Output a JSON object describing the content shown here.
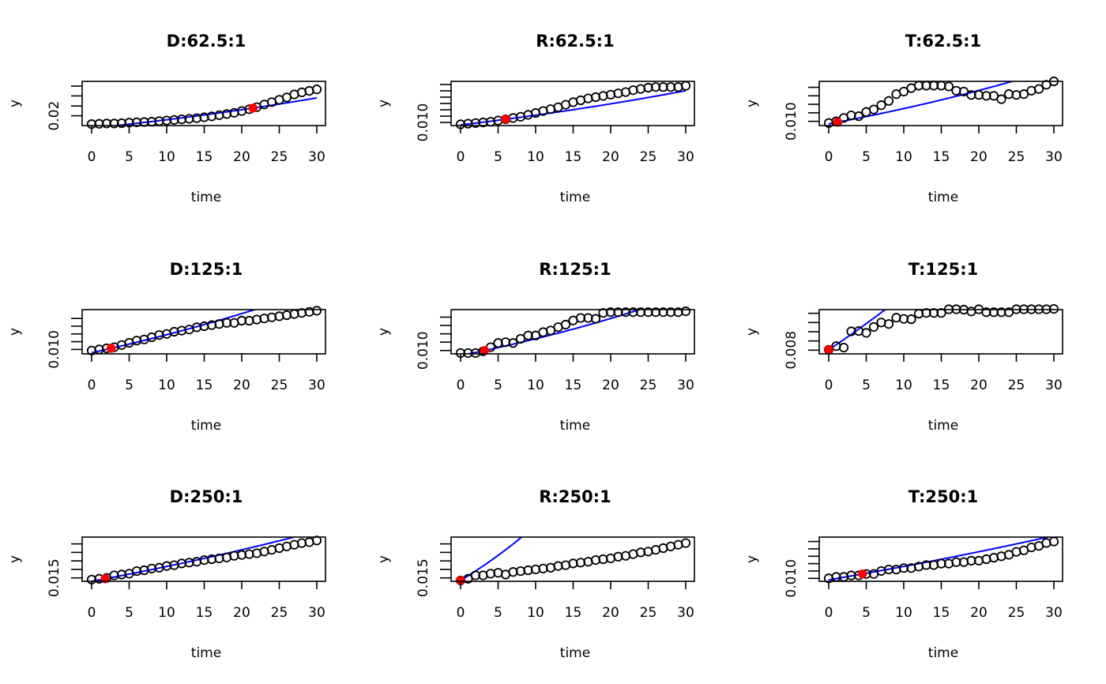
{
  "chart_data": [
    {
      "type": "scatter",
      "title": "D:62.5:1",
      "xlabel": "time",
      "ylabel": "y",
      "xlim": [
        0,
        30
      ],
      "xticks": [
        "0",
        "5",
        "10",
        "15",
        "20",
        "25",
        "30"
      ],
      "ylim": [
        0.0167,
        0.0316
      ],
      "yticks": [
        0.02,
        0.0233,
        0.0267,
        0.03
      ],
      "ytick_label": "0.02",
      "x": [
        0,
        1,
        2,
        3,
        4,
        5,
        6,
        7,
        8,
        9,
        10,
        11,
        12,
        13,
        14,
        15,
        16,
        17,
        18,
        19,
        20,
        21,
        22,
        23,
        24,
        25,
        26,
        27,
        28,
        29,
        30
      ],
      "y": [
        0.0172,
        0.0173,
        0.0174,
        0.0174,
        0.0175,
        0.0177,
        0.0178,
        0.0179,
        0.018,
        0.0182,
        0.0184,
        0.0186,
        0.0188,
        0.019,
        0.0192,
        0.0195,
        0.0198,
        0.0202,
        0.0206,
        0.021,
        0.0216,
        0.0222,
        0.0229,
        0.0238,
        0.0246,
        0.0254,
        0.0262,
        0.0272,
        0.0279,
        0.0284,
        0.0289
      ],
      "highlight_point": {
        "x": 21.5,
        "y": 0.0226
      },
      "fit": {
        "type": "exponential",
        "through": {
          "x": 21.5,
          "y": 0.0226
        },
        "y0": 0.0158,
        "color": "#0000ff"
      },
      "point_color": "#000000",
      "highlight_color": "#ff0000"
    },
    {
      "type": "scatter",
      "title": "R:62.5:1",
      "xlabel": "time",
      "ylabel": "y",
      "xlim": [
        0,
        30
      ],
      "xticks": [
        "0",
        "5",
        "10",
        "15",
        "20",
        "25",
        "30"
      ],
      "ylim": [
        0.0095,
        0.0165
      ],
      "yticks": [
        0.01,
        0.011,
        0.012,
        0.013,
        0.014,
        0.015,
        0.016
      ],
      "ytick_label": "0.010",
      "x": [
        0,
        1,
        2,
        3,
        4,
        5,
        6,
        7,
        8,
        9,
        10,
        11,
        12,
        13,
        14,
        15,
        16,
        17,
        18,
        19,
        20,
        21,
        22,
        23,
        24,
        25,
        26,
        27,
        28,
        29,
        30
      ],
      "y": [
        0.0097,
        0.0098,
        0.0099,
        0.01,
        0.0101,
        0.0103,
        0.0105,
        0.0107,
        0.0109,
        0.0112,
        0.0115,
        0.0118,
        0.0121,
        0.0124,
        0.0128,
        0.0132,
        0.0135,
        0.0138,
        0.014,
        0.0142,
        0.0144,
        0.0146,
        0.0148,
        0.0151,
        0.0153,
        0.0155,
        0.0156,
        0.0156,
        0.0156,
        0.0156,
        0.0158
      ],
      "highlight_point": {
        "x": 6,
        "y": 0.0105
      },
      "fit": {
        "type": "exponential",
        "through": {
          "x": 6,
          "y": 0.0105
        },
        "y0": 0.0096,
        "color": "#0000ff"
      },
      "point_color": "#000000",
      "highlight_color": "#ff0000"
    },
    {
      "type": "scatter",
      "title": "T:62.5:1",
      "xlabel": "time",
      "ylabel": "y",
      "xlim": [
        0,
        30
      ],
      "xticks": [
        "0",
        "5",
        "10",
        "15",
        "20",
        "25",
        "30"
      ],
      "ylim": [
        0.0095,
        0.0147
      ],
      "yticks": [
        0.01,
        0.011,
        0.012,
        0.013,
        0.014
      ],
      "ytick_label": "0.010",
      "x": [
        0,
        1,
        2,
        3,
        4,
        5,
        6,
        7,
        8,
        9,
        10,
        11,
        12,
        13,
        14,
        15,
        16,
        17,
        18,
        19,
        20,
        21,
        22,
        23,
        24,
        25,
        26,
        27,
        28,
        29,
        30
      ],
      "y": [
        0.0098,
        0.01,
        0.0104,
        0.0107,
        0.0106,
        0.0111,
        0.0114,
        0.0119,
        0.0124,
        0.0132,
        0.0135,
        0.0139,
        0.0142,
        0.0142,
        0.0142,
        0.0142,
        0.0141,
        0.0136,
        0.0135,
        0.0131,
        0.0131,
        0.013,
        0.013,
        0.0126,
        0.0132,
        0.0131,
        0.0132,
        0.0136,
        0.0138,
        0.0143,
        0.0147
      ],
      "highlight_point": {
        "x": 1.2,
        "y": 0.0099
      },
      "fit": {
        "type": "exponential",
        "through": {
          "x": 1.2,
          "y": 0.0099
        },
        "y0": 0.0097,
        "color": "#0000ff"
      },
      "point_color": "#000000",
      "highlight_color": "#ff0000"
    },
    {
      "type": "scatter",
      "title": "D:125:1",
      "xlabel": "time",
      "ylabel": "y",
      "xlim": [
        0,
        30
      ],
      "xticks": [
        "0",
        "5",
        "10",
        "15",
        "20",
        "25",
        "30"
      ],
      "ylim": [
        0.0096,
        0.0136
      ],
      "yticks": [
        0.01,
        0.0107,
        0.0114,
        0.0121,
        0.0128
      ],
      "ytick_label": "0.010",
      "x": [
        0,
        1,
        2,
        3,
        4,
        5,
        6,
        7,
        8,
        9,
        10,
        11,
        12,
        13,
        14,
        15,
        16,
        17,
        18,
        19,
        20,
        21,
        22,
        23,
        24,
        25,
        26,
        27,
        28,
        29,
        30
      ],
      "y": [
        0.0099,
        0.01,
        0.0101,
        0.0102,
        0.0104,
        0.0106,
        0.0108,
        0.0109,
        0.0111,
        0.0113,
        0.0114,
        0.0116,
        0.0117,
        0.0118,
        0.012,
        0.0121,
        0.0122,
        0.0123,
        0.0124,
        0.0124,
        0.0126,
        0.0126,
        0.0127,
        0.0128,
        0.0129,
        0.013,
        0.0131,
        0.0132,
        0.0133,
        0.0134,
        0.0135
      ],
      "highlight_point": {
        "x": 2.6,
        "y": 0.0101
      },
      "fit": {
        "type": "exponential",
        "through": {
          "x": 2.6,
          "y": 0.0101
        },
        "y0": 0.0097,
        "color": "#0000ff"
      },
      "point_color": "#000000",
      "highlight_color": "#ff0000"
    },
    {
      "type": "scatter",
      "title": "R:125:1",
      "xlabel": "time",
      "ylabel": "y",
      "xlim": [
        0,
        30
      ],
      "xticks": [
        "0",
        "5",
        "10",
        "15",
        "20",
        "25",
        "30"
      ],
      "ylim": [
        0.0096,
        0.0149
      ],
      "yticks": [
        0.01,
        0.011,
        0.012,
        0.013,
        0.014
      ],
      "ytick_label": "0.010",
      "x": [
        0,
        1,
        2,
        3,
        4,
        5,
        6,
        7,
        8,
        9,
        10,
        11,
        12,
        13,
        14,
        15,
        16,
        17,
        18,
        19,
        20,
        21,
        22,
        23,
        24,
        25,
        26,
        27,
        28,
        29,
        30
      ],
      "y": [
        0.0097,
        0.0097,
        0.0097,
        0.0099,
        0.0104,
        0.0109,
        0.011,
        0.0109,
        0.0114,
        0.0118,
        0.0118,
        0.0122,
        0.0124,
        0.0128,
        0.0131,
        0.0136,
        0.0139,
        0.0139,
        0.0138,
        0.0145,
        0.0146,
        0.0146,
        0.0146,
        0.0146,
        0.0146,
        0.0146,
        0.0146,
        0.0146,
        0.0146,
        0.0146,
        0.0147
      ],
      "highlight_point": {
        "x": 3.2,
        "y": 0.01
      },
      "fit": {
        "type": "exponential",
        "through": {
          "x": 3.2,
          "y": 0.01
        },
        "y0": 0.0094,
        "color": "#0000ff"
      },
      "point_color": "#000000",
      "highlight_color": "#ff0000"
    },
    {
      "type": "scatter",
      "title": "T:125:1",
      "xlabel": "time",
      "ylabel": "y",
      "xlim": [
        0,
        30
      ],
      "xticks": [
        "0",
        "5",
        "10",
        "15",
        "20",
        "25",
        "30"
      ],
      "ylim": [
        0.0079,
        0.0091
      ],
      "yticks": [
        0.008,
        0.00825,
        0.0085,
        0.00875,
        0.009
      ],
      "ytick_label": "0.008",
      "x": [
        0,
        1,
        2,
        3,
        4,
        5,
        6,
        7,
        8,
        9,
        10,
        11,
        12,
        13,
        14,
        15,
        16,
        17,
        18,
        19,
        20,
        21,
        22,
        23,
        24,
        25,
        26,
        27,
        28,
        29,
        30
      ],
      "y": [
        0.00801,
        0.00811,
        0.00807,
        0.00851,
        0.00852,
        0.00847,
        0.00863,
        0.00875,
        0.00871,
        0.00888,
        0.00885,
        0.00884,
        0.00899,
        0.00901,
        0.00901,
        0.00901,
        0.00911,
        0.00911,
        0.0091,
        0.00905,
        0.00911,
        0.00903,
        0.00903,
        0.00903,
        0.00903,
        0.00911,
        0.00911,
        0.00911,
        0.00911,
        0.00911,
        0.00912
      ],
      "highlight_point": {
        "x": 0,
        "y": 0.00801
      },
      "fit": {
        "type": "exponential",
        "through": {
          "x": 0,
          "y": 0.00801
        },
        "y0": 0.00801,
        "color": "#0000ff"
      },
      "point_color": "#000000",
      "highlight_color": "#ff0000"
    },
    {
      "type": "scatter",
      "title": "D:250:1",
      "xlabel": "time",
      "ylabel": "y",
      "xlim": [
        0,
        30
      ],
      "xticks": [
        "0",
        "5",
        "10",
        "15",
        "20",
        "25",
        "30"
      ],
      "ylim": [
        0.0146,
        0.0198
      ],
      "yticks": [
        0.015,
        0.016,
        0.017,
        0.018,
        0.019
      ],
      "ytick_label": "0.015",
      "x": [
        0,
        1,
        2,
        3,
        4,
        5,
        6,
        7,
        8,
        9,
        10,
        11,
        12,
        13,
        14,
        15,
        16,
        17,
        18,
        19,
        20,
        21,
        22,
        23,
        24,
        25,
        26,
        27,
        28,
        29,
        30
      ],
      "y": [
        0.0148,
        0.0149,
        0.015,
        0.0153,
        0.0154,
        0.0155,
        0.0158,
        0.0159,
        0.0161,
        0.0162,
        0.0164,
        0.0165,
        0.0167,
        0.0168,
        0.0169,
        0.0171,
        0.0172,
        0.0173,
        0.0174,
        0.0176,
        0.0177,
        0.0178,
        0.0179,
        0.0181,
        0.0183,
        0.0185,
        0.0187,
        0.0189,
        0.0191,
        0.0192,
        0.0194
      ],
      "highlight_point": {
        "x": 1.8,
        "y": 0.0149
      },
      "fit": {
        "type": "exponential",
        "through": {
          "x": 1.8,
          "y": 0.0149
        },
        "y0": 0.0146,
        "color": "#0000ff"
      },
      "point_color": "#000000",
      "highlight_color": "#ff0000"
    },
    {
      "type": "scatter",
      "title": "R:250:1",
      "xlabel": "time",
      "ylabel": "y",
      "xlim": [
        0,
        30
      ],
      "xticks": [
        "0",
        "5",
        "10",
        "15",
        "20",
        "25",
        "30"
      ],
      "ylim": [
        0.0146,
        0.0198
      ],
      "yticks": [
        0.015,
        0.016,
        0.017,
        0.018,
        0.019
      ],
      "ytick_label": "0.015",
      "x": [
        0,
        1,
        2,
        3,
        4,
        5,
        6,
        7,
        8,
        9,
        10,
        11,
        12,
        13,
        14,
        15,
        16,
        17,
        18,
        19,
        20,
        21,
        22,
        23,
        24,
        25,
        26,
        27,
        28,
        29,
        30
      ],
      "y": [
        0.0147,
        0.0149,
        0.0153,
        0.0153,
        0.0155,
        0.0156,
        0.0154,
        0.0157,
        0.0158,
        0.0159,
        0.016,
        0.0161,
        0.0162,
        0.0164,
        0.0165,
        0.0167,
        0.0168,
        0.0169,
        0.0171,
        0.0172,
        0.0173,
        0.0175,
        0.0176,
        0.0178,
        0.018,
        0.0181,
        0.0183,
        0.0185,
        0.0187,
        0.0189,
        0.0191
      ],
      "highlight_point": {
        "x": 0,
        "y": 0.0147
      },
      "fit": {
        "type": "exponential",
        "through": {
          "x": 0,
          "y": 0.0147
        },
        "y0": 0.0147,
        "color": "#0000ff"
      },
      "point_color": "#000000",
      "highlight_color": "#ff0000"
    },
    {
      "type": "scatter",
      "title": "T:250:1",
      "xlabel": "time",
      "ylabel": "y",
      "xlim": [
        0,
        30
      ],
      "xticks": [
        "0",
        "5",
        "10",
        "15",
        "20",
        "25",
        "30"
      ],
      "ylim": [
        0.0098,
        0.0128
      ],
      "yticks": [
        0.01,
        0.0105,
        0.011,
        0.0115,
        0.012,
        0.0125
      ],
      "ytick_label": "0.010",
      "x": [
        0,
        1,
        2,
        3,
        4,
        5,
        6,
        7,
        8,
        9,
        10,
        11,
        12,
        13,
        14,
        15,
        16,
        17,
        18,
        19,
        20,
        21,
        22,
        23,
        24,
        25,
        26,
        27,
        28,
        29,
        30
      ],
      "y": [
        0.01,
        0.0101,
        0.0101,
        0.0102,
        0.0102,
        0.0103,
        0.0103,
        0.0105,
        0.0106,
        0.0106,
        0.0107,
        0.0107,
        0.0108,
        0.0109,
        0.0109,
        0.011,
        0.011,
        0.0111,
        0.0111,
        0.0112,
        0.0112,
        0.0113,
        0.0114,
        0.0115,
        0.0116,
        0.0118,
        0.0119,
        0.0121,
        0.0122,
        0.0124,
        0.0125
      ],
      "highlight_point": {
        "x": 4.5,
        "y": 0.0103
      },
      "fit": {
        "type": "exponential",
        "through": {
          "x": 4.5,
          "y": 0.0103
        },
        "y0": 0.0099,
        "color": "#0000ff"
      },
      "point_color": "#000000",
      "highlight_color": "#ff0000"
    }
  ]
}
